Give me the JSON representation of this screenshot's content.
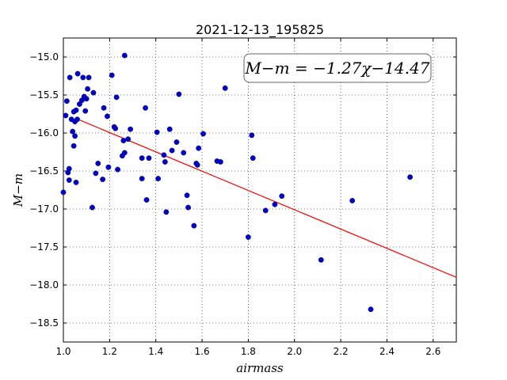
{
  "chart_data": {
    "type": "scatter",
    "title": "2021-12-13_195825",
    "xlabel": "airmass",
    "ylabel": "M−m",
    "xlim": [
      1.0,
      2.7
    ],
    "ylim": [
      -18.75,
      -14.75
    ],
    "y_inverted": true,
    "grid": true,
    "x_ticks": [
      1.0,
      1.2,
      1.4,
      1.6,
      1.8,
      2.0,
      2.2,
      2.4,
      2.6
    ],
    "x_tick_labels": [
      "1.0",
      "1.2",
      "1.4",
      "1.6",
      "1.8",
      "2.0",
      "2.2",
      "2.4",
      "2.6"
    ],
    "y_ticks": [
      -15.0,
      -15.5,
      -16.0,
      -16.5,
      -17.0,
      -17.5,
      -18.0,
      -18.5
    ],
    "y_tick_labels": [
      "−15.0",
      "−15.5",
      "−16.0",
      "−16.5",
      "−17.0",
      "−17.5",
      "−18.0",
      "−18.5"
    ],
    "annotation": "M−m = −1.27χ−14.47",
    "annotation_placement": "top-right",
    "fit": {
      "slope": -1.27,
      "intercept": -14.47,
      "x_range": [
        1.06,
        2.7
      ],
      "color": "#ff0000"
    },
    "marker_color": "#0000cc",
    "points": [
      [
        1.0,
        -16.78
      ],
      [
        1.01,
        -15.77
      ],
      [
        1.015,
        -15.58
      ],
      [
        1.02,
        -16.52
      ],
      [
        1.025,
        -16.47
      ],
      [
        1.025,
        -16.62
      ],
      [
        1.028,
        -15.27
      ],
      [
        1.035,
        -15.82
      ],
      [
        1.04,
        -15.98
      ],
      [
        1.045,
        -15.72
      ],
      [
        1.045,
        -16.17
      ],
      [
        1.05,
        -16.04
      ],
      [
        1.05,
        -15.85
      ],
      [
        1.055,
        -15.7
      ],
      [
        1.055,
        -16.65
      ],
      [
        1.06,
        -15.82
      ],
      [
        1.062,
        -15.22
      ],
      [
        1.07,
        -15.62
      ],
      [
        1.08,
        -15.57
      ],
      [
        1.085,
        -15.27
      ],
      [
        1.09,
        -15.52
      ],
      [
        1.095,
        -15.71
      ],
      [
        1.1,
        -15.55
      ],
      [
        1.105,
        -15.42
      ],
      [
        1.11,
        -15.27
      ],
      [
        1.125,
        -16.98
      ],
      [
        1.13,
        -15.47
      ],
      [
        1.14,
        -16.53
      ],
      [
        1.15,
        -16.4
      ],
      [
        1.17,
        -16.61
      ],
      [
        1.175,
        -15.67
      ],
      [
        1.19,
        -15.78
      ],
      [
        1.195,
        -16.45
      ],
      [
        1.21,
        -15.24
      ],
      [
        1.22,
        -15.92
      ],
      [
        1.225,
        -15.94
      ],
      [
        1.23,
        -15.53
      ],
      [
        1.235,
        -16.48
      ],
      [
        1.255,
        -16.3
      ],
      [
        1.26,
        -16.1
      ],
      [
        1.265,
        -14.98
      ],
      [
        1.265,
        -16.26
      ],
      [
        1.28,
        -16.08
      ],
      [
        1.29,
        -15.95
      ],
      [
        1.34,
        -16.33
      ],
      [
        1.34,
        -16.6
      ],
      [
        1.355,
        -15.67
      ],
      [
        1.36,
        -16.88
      ],
      [
        1.37,
        -16.33
      ],
      [
        1.405,
        -15.99
      ],
      [
        1.41,
        -16.6
      ],
      [
        1.435,
        -16.29
      ],
      [
        1.44,
        -16.38
      ],
      [
        1.445,
        -17.04
      ],
      [
        1.46,
        -15.95
      ],
      [
        1.47,
        -16.23
      ],
      [
        1.49,
        -16.12
      ],
      [
        1.5,
        -15.49
      ],
      [
        1.52,
        -16.26
      ],
      [
        1.535,
        -16.82
      ],
      [
        1.54,
        -16.98
      ],
      [
        1.565,
        -17.22
      ],
      [
        1.575,
        -16.4
      ],
      [
        1.58,
        -16.42
      ],
      [
        1.585,
        -16.2
      ],
      [
        1.605,
        -16.01
      ],
      [
        1.665,
        -16.37
      ],
      [
        1.68,
        -16.38
      ],
      [
        1.7,
        -15.41
      ],
      [
        1.8,
        -17.37
      ],
      [
        1.815,
        -16.03
      ],
      [
        1.82,
        -16.33
      ],
      [
        1.875,
        -17.02
      ],
      [
        1.915,
        -16.94
      ],
      [
        1.945,
        -16.83
      ],
      [
        2.115,
        -17.67
      ],
      [
        2.25,
        -16.89
      ],
      [
        2.33,
        -18.32
      ],
      [
        2.5,
        -16.58
      ]
    ]
  }
}
